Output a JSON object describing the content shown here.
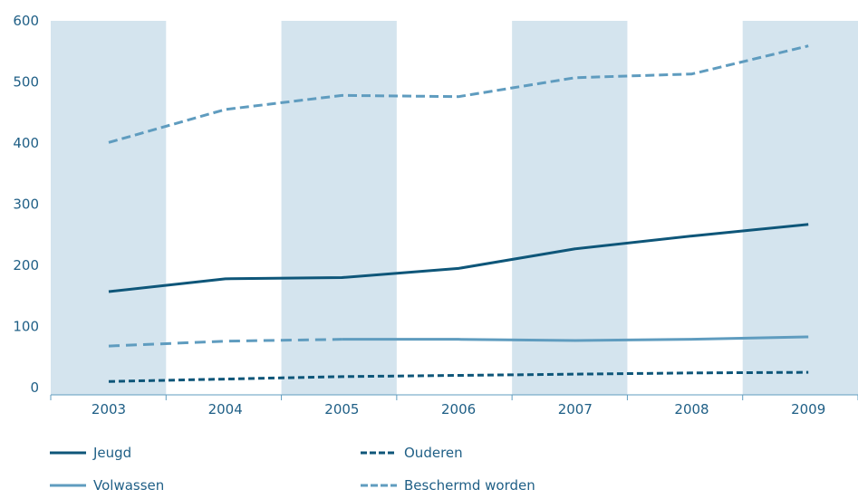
{
  "chart_data": {
    "type": "line",
    "x": [
      "2003",
      "2004",
      "2005",
      "2006",
      "2007",
      "2008",
      "2009"
    ],
    "ylim": [
      0,
      600
    ],
    "yticks": [
      0,
      100,
      200,
      300,
      400,
      500,
      600
    ],
    "grid": false,
    "legend_position": "bottom",
    "series": [
      {
        "name": "Jeugd",
        "style": "solid",
        "color": "#0e5679",
        "values": [
          157,
          178,
          180,
          195,
          227,
          248,
          267
        ]
      },
      {
        "name": "Ouderen",
        "style": "dashed",
        "color": "#0e5679",
        "values": [
          10,
          14,
          18,
          20,
          22,
          24,
          25
        ]
      },
      {
        "name": "Volwassen",
        "style": "mixed-dashed-solid",
        "color": "#5f9cbf",
        "values": [
          68,
          76,
          79,
          79,
          77,
          79,
          83
        ]
      },
      {
        "name": "Beschermd worden",
        "style": "dashed",
        "color": "#5f9cbf",
        "values": [
          401,
          455,
          478,
          476,
          507,
          513,
          559
        ]
      }
    ],
    "band_color": "#d4e4ee",
    "axis_color": "#5f9cbf"
  }
}
